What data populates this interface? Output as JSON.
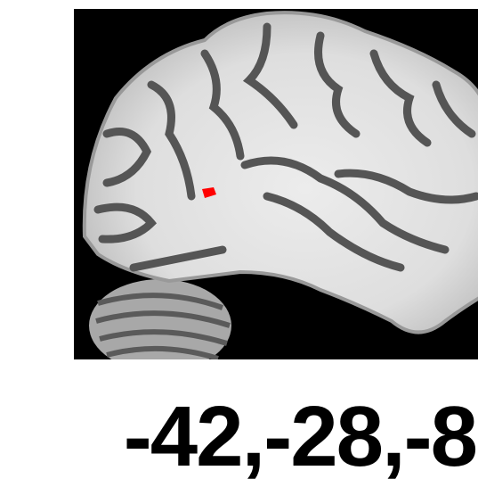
{
  "image": {
    "coordinates": "-42,-28,-8"
  }
}
